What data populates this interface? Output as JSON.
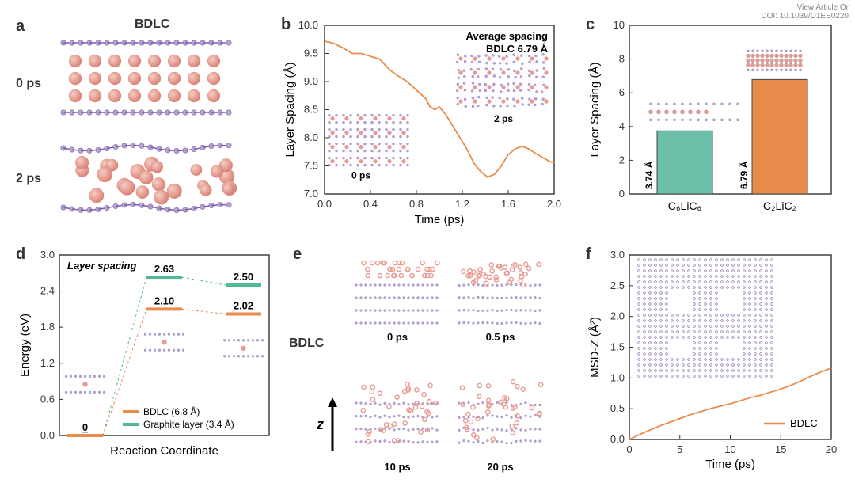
{
  "meta": {
    "view_article": "View Article Or",
    "doi": "DOI: 10.1039/D1EE0220"
  },
  "colors": {
    "li_atom": "#e89a90",
    "c_atom": "#b9a4d6",
    "c_stroke": "#7a5fa8",
    "line_orange": "#e98b4a",
    "bar_teal": "#6cbfa8",
    "bar_orange": "#e98b4a",
    "level_teal": "#52b89a",
    "level_orange": "#e98b4a"
  },
  "panel_a": {
    "label": "a",
    "title": "BDLC",
    "t0": "0 ps",
    "t1": "2 ps"
  },
  "panel_b": {
    "label": "b",
    "annot1": "Average spacing",
    "annot2": "BDLC 6.79 Å",
    "xlabel": "Time (ps)",
    "ylabel": "Layer Spacing (Å)",
    "xlim": [
      0,
      2.0
    ],
    "ylim": [
      7.0,
      10.0
    ],
    "xticks": [
      0.0,
      0.4,
      0.8,
      1.2,
      1.6,
      2.0
    ],
    "yticks": [
      7.0,
      7.5,
      8.0,
      8.5,
      9.0,
      9.5,
      10.0
    ],
    "inset_0": "0 ps",
    "inset_2": "2 ps",
    "series": [
      [
        0.0,
        9.72
      ],
      [
        0.08,
        9.68
      ],
      [
        0.16,
        9.6
      ],
      [
        0.24,
        9.5
      ],
      [
        0.32,
        9.5
      ],
      [
        0.4,
        9.45
      ],
      [
        0.48,
        9.4
      ],
      [
        0.56,
        9.22
      ],
      [
        0.64,
        9.1
      ],
      [
        0.72,
        9.0
      ],
      [
        0.8,
        8.85
      ],
      [
        0.88,
        8.7
      ],
      [
        0.92,
        8.55
      ],
      [
        0.96,
        8.5
      ],
      [
        1.0,
        8.55
      ],
      [
        1.06,
        8.4
      ],
      [
        1.12,
        8.2
      ],
      [
        1.18,
        8.0
      ],
      [
        1.24,
        7.8
      ],
      [
        1.3,
        7.55
      ],
      [
        1.36,
        7.4
      ],
      [
        1.42,
        7.3
      ],
      [
        1.48,
        7.35
      ],
      [
        1.54,
        7.5
      ],
      [
        1.6,
        7.7
      ],
      [
        1.66,
        7.8
      ],
      [
        1.72,
        7.85
      ],
      [
        1.78,
        7.8
      ],
      [
        1.84,
        7.72
      ],
      [
        1.9,
        7.65
      ],
      [
        1.96,
        7.58
      ],
      [
        2.0,
        7.55
      ]
    ]
  },
  "panel_c": {
    "label": "c",
    "xlabel_left": "C₆LiC₆",
    "xlabel_right": "C₂LiC₂",
    "ylabel": "Layer Spacing (Å)",
    "ylim": [
      0,
      10
    ],
    "yticks": [
      0,
      2,
      4,
      6,
      8,
      10
    ],
    "bar1_value": 3.74,
    "bar2_value": 6.79,
    "bar1_label": "3.74 Å",
    "bar2_label": "6.79 Å"
  },
  "panel_d": {
    "label": "d",
    "ylabel": "Energy (eV)",
    "xlabel": "Reaction Coordinate",
    "ylim": [
      0,
      3.0
    ],
    "yticks": [
      0.0,
      0.6,
      1.2,
      1.8,
      2.4,
      3.0
    ],
    "title_note": "Layer spacing",
    "legend_bdlc": "BDLC (6.8 Å)",
    "legend_graphite": "Graphite layer (3.4 Å)",
    "level_teal_ts": 2.63,
    "level_teal_fs": 2.5,
    "level_orange_ts": 2.1,
    "level_orange_fs": 2.02,
    "level_is": 0,
    "label_teal_ts": "2.63",
    "label_teal_fs": "2.50",
    "label_orange_ts": "2.10",
    "label_orange_fs": "2.02",
    "label_is": "0"
  },
  "panel_e": {
    "label": "e",
    "title": "BDLC",
    "z_label": "z",
    "t0": "0 ps",
    "t1": "0.5 ps",
    "t2": "10 ps",
    "t3": "20 ps"
  },
  "panel_f": {
    "label": "f",
    "ylabel": "MSD-Z (Å²)",
    "xlabel": "Time (ps)",
    "legend": "BDLC",
    "xlim": [
      0,
      20
    ],
    "ylim": [
      0,
      3.0
    ],
    "xticks": [
      0,
      5,
      10,
      15,
      20
    ],
    "yticks": [
      0.0,
      0.5,
      1.0,
      1.5,
      2.0,
      2.5,
      3.0
    ],
    "series": [
      [
        0,
        0.0
      ],
      [
        1,
        0.08
      ],
      [
        2,
        0.15
      ],
      [
        3,
        0.22
      ],
      [
        4,
        0.28
      ],
      [
        5,
        0.34
      ],
      [
        6,
        0.4
      ],
      [
        7,
        0.45
      ],
      [
        8,
        0.5
      ],
      [
        9,
        0.54
      ],
      [
        10,
        0.58
      ],
      [
        11,
        0.63
      ],
      [
        12,
        0.68
      ],
      [
        13,
        0.72
      ],
      [
        14,
        0.77
      ],
      [
        15,
        0.82
      ],
      [
        16,
        0.88
      ],
      [
        17,
        0.95
      ],
      [
        18,
        1.03
      ],
      [
        19,
        1.1
      ],
      [
        20,
        1.16
      ]
    ]
  }
}
